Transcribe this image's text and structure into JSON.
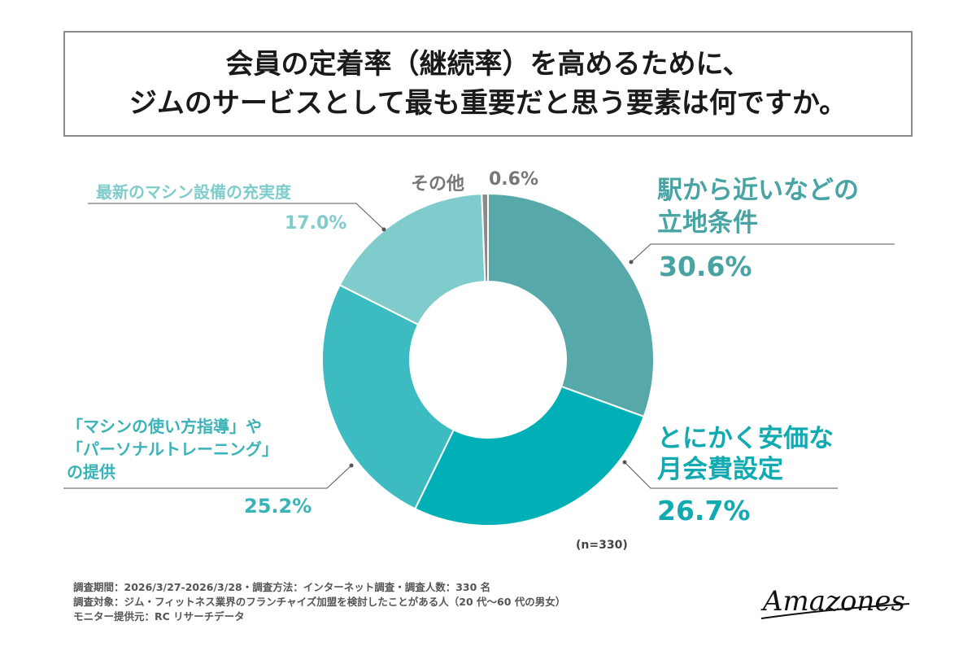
{
  "title": {
    "line1": "会員の定着率（継続率）を高めるために、",
    "line2": "ジムのサービスとして最も重要だと思う要素は何ですか。"
  },
  "labels": {
    "station": {
      "line1": "駅から近いなどの",
      "line2": "立地条件",
      "pct": "30.6%"
    },
    "price": {
      "line1": "とにかく安価な",
      "line2": "月会費設定",
      "pct": "26.7%"
    },
    "training": {
      "line1": "「マシンの使い方指導」や",
      "line2": "「パーソナルトレーニング」",
      "line3": "の提供",
      "pct": "25.2%"
    },
    "machines": {
      "line1": "最新のマシン設備の充実度",
      "pct": "17.0%"
    },
    "other": {
      "line1": "その他",
      "pct": "0.6%"
    }
  },
  "n_note": "(n=330)",
  "footer": {
    "line1": "調査期間：2026/3/27-2026/3/28・調査方法：インターネット調査・調査人数：330 名",
    "line2": "調査対象：ジム・フィットネス業界のフランチャイズ加盟を検討したことがある人（20 代〜60 代の男女）",
    "line3": "モニター提供元：RC リサーチデータ"
  },
  "logo_text": "Amazones",
  "chart_data": {
    "type": "pie",
    "donut": true,
    "title": "会員の定着率（継続率）を高めるために、ジムのサービスとして最も重要だと思う要素は何ですか。",
    "categories": [
      "駅から近いなどの立地条件",
      "とにかく安価な月会費設定",
      "「マシンの使い方指導」や「パーソナルトレーニング」の提供",
      "最新のマシン設備の充実度",
      "その他"
    ],
    "values": [
      30.6,
      26.7,
      25.2,
      17.0,
      0.6
    ],
    "colors": [
      "#57a8a8",
      "#00b0b6",
      "#3cbbc0",
      "#80cccc",
      "#8a8a8a"
    ],
    "label_colors": [
      "#4aa3a3",
      "#10aab0",
      "#3ab3b8",
      "#80cccc",
      "#777777"
    ],
    "n": 330
  }
}
